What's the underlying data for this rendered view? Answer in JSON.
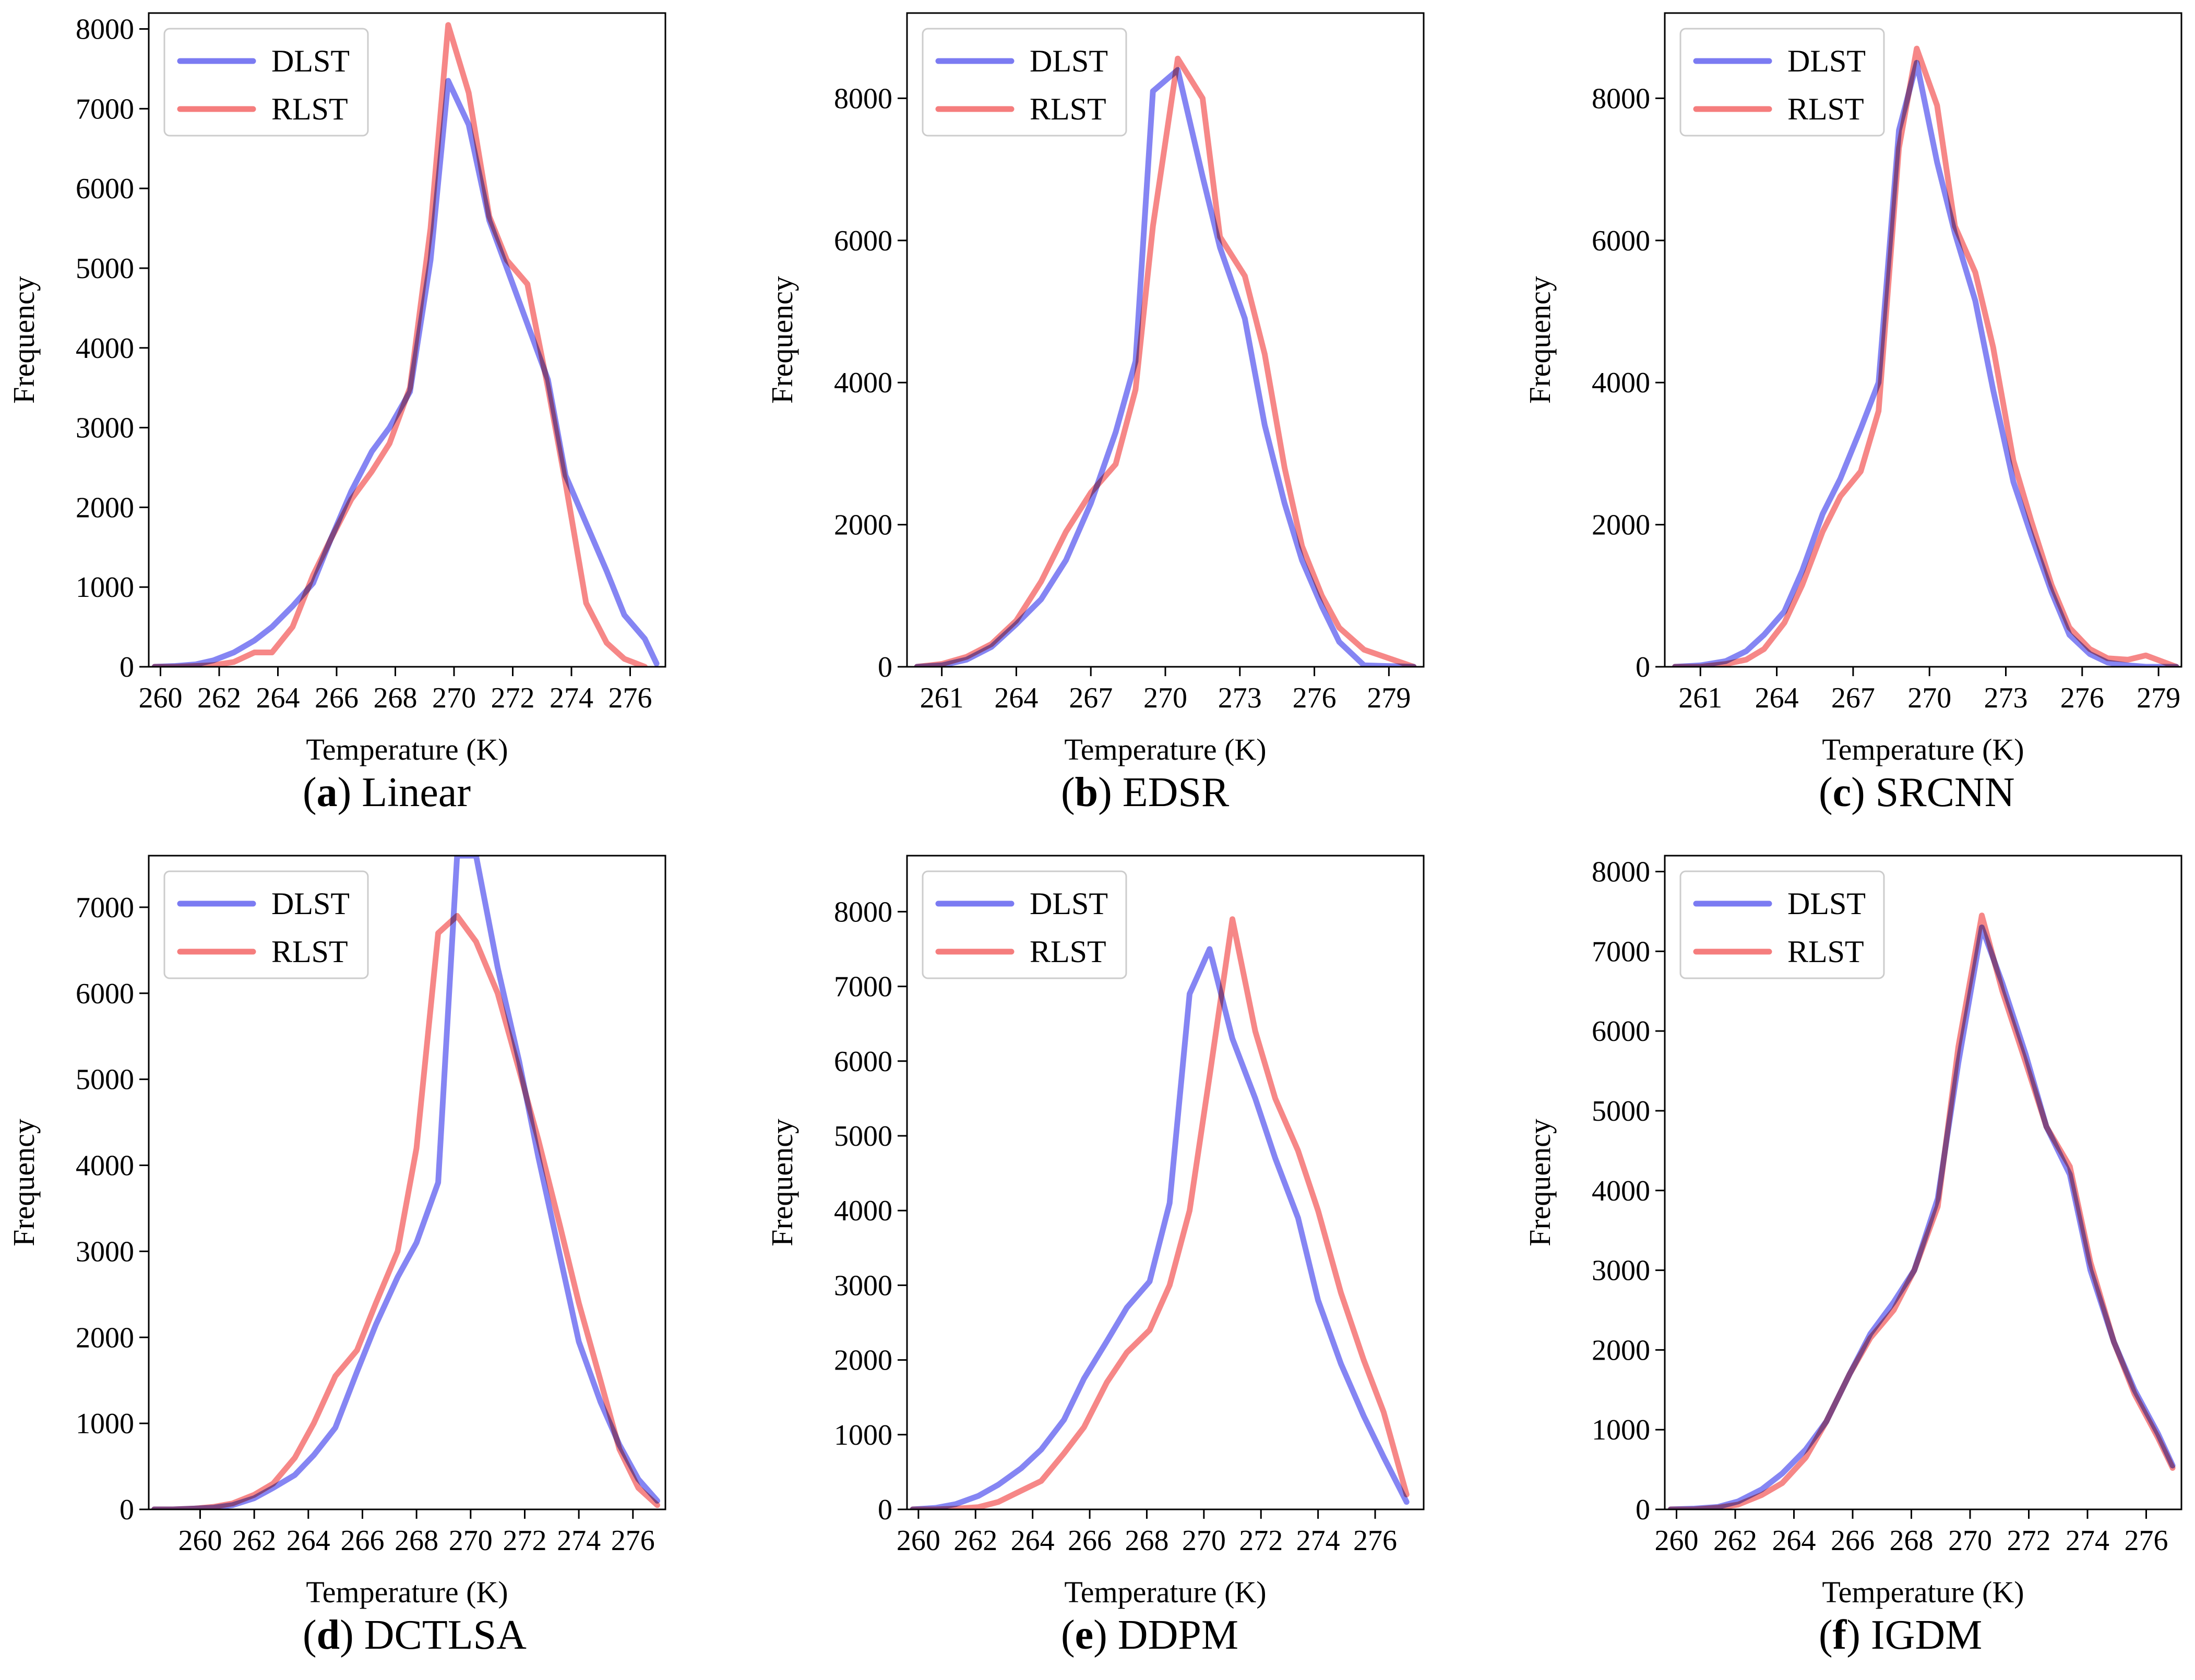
{
  "colors": {
    "dlst": "#7b7bf2",
    "rlst": "#f57d7d",
    "overlap": "#b54ab5"
  },
  "chart_data": [
    {
      "type": "line",
      "caption_letter": "a",
      "caption_text": " Linear",
      "xlabel": "Temperature (K)",
      "ylabel": "Frequency",
      "xlim": [
        259.6,
        277.2
      ],
      "ylim": [
        0,
        8200
      ],
      "xticks": [
        260,
        262,
        264,
        266,
        268,
        270,
        272,
        274,
        276
      ],
      "yticks": [
        0,
        1000,
        2000,
        3000,
        4000,
        5000,
        6000,
        7000,
        8000
      ],
      "legend": "top-left",
      "series": [
        {
          "name": "DLST",
          "x": [
            259.8,
            260.5,
            261.2,
            261.8,
            262.5,
            263.2,
            263.8,
            264.5,
            265.2,
            265.8,
            266.5,
            267.2,
            267.8,
            268.5,
            269.2,
            269.8,
            270.5,
            271.2,
            271.8,
            272.5,
            273.2,
            273.8,
            274.5,
            275.2,
            275.8,
            276.5,
            276.9
          ],
          "y": [
            0,
            10,
            30,
            80,
            180,
            330,
            500,
            760,
            1050,
            1600,
            2200,
            2700,
            3000,
            3450,
            5100,
            7350,
            6800,
            5600,
            5000,
            4300,
            3600,
            2400,
            1800,
            1200,
            650,
            350,
            40
          ]
        },
        {
          "name": "RLST",
          "x": [
            259.8,
            260.5,
            261.2,
            261.8,
            262.5,
            263.2,
            263.8,
            264.5,
            265.2,
            265.8,
            266.5,
            267.2,
            267.8,
            268.5,
            269.2,
            269.8,
            270.5,
            271.2,
            271.8,
            272.5,
            273.2,
            273.8,
            274.5,
            275.2,
            275.8,
            276.5
          ],
          "y": [
            0,
            0,
            10,
            20,
            60,
            180,
            180,
            500,
            1150,
            1600,
            2100,
            2450,
            2800,
            3500,
            5500,
            8050,
            7200,
            5650,
            5100,
            4800,
            3500,
            2300,
            800,
            300,
            100,
            0
          ]
        }
      ]
    },
    {
      "type": "line",
      "caption_letter": "b",
      "caption_text": " EDSR",
      "xlabel": "Temperature (K)",
      "ylabel": "Frequency",
      "xlim": [
        259.6,
        280.4
      ],
      "ylim": [
        0,
        9200
      ],
      "xticks": [
        261,
        264,
        267,
        270,
        273,
        276,
        279
      ],
      "yticks": [
        0,
        2000,
        4000,
        6000,
        8000
      ],
      "legend": "top-left",
      "series": [
        {
          "name": "DLST",
          "x": [
            260,
            261,
            262,
            263,
            264,
            265,
            266,
            267,
            268,
            268.8,
            269.5,
            270.5,
            271.5,
            272.2,
            273.2,
            274,
            274.8,
            275.5,
            276.3,
            277,
            278,
            280
          ],
          "y": [
            0,
            20,
            100,
            280,
            600,
            950,
            1500,
            2300,
            3300,
            4300,
            8100,
            8400,
            6900,
            5900,
            4900,
            3400,
            2300,
            1500,
            850,
            350,
            20,
            0
          ]
        },
        {
          "name": "RLST",
          "x": [
            260,
            261,
            262,
            263,
            264,
            265,
            266,
            267,
            268,
            268.8,
            269.5,
            270.5,
            271.5,
            272.2,
            273.2,
            274,
            274.8,
            275.5,
            276.3,
            277,
            278,
            280
          ],
          "y": [
            0,
            40,
            140,
            320,
            650,
            1200,
            1900,
            2450,
            2850,
            3900,
            6200,
            8560,
            8000,
            6050,
            5500,
            4400,
            2800,
            1700,
            1000,
            550,
            240,
            0
          ]
        }
      ]
    },
    {
      "type": "line",
      "caption_letter": "c",
      "caption_text": " SRCNN",
      "xlabel": "Temperature (K)",
      "ylabel": "Frequency",
      "xlim": [
        259.6,
        279.9
      ],
      "ylim": [
        0,
        9200
      ],
      "xticks": [
        261,
        264,
        267,
        270,
        273,
        276,
        279
      ],
      "yticks": [
        0,
        2000,
        4000,
        6000,
        8000
      ],
      "legend": "top-left",
      "series": [
        {
          "name": "DLST",
          "x": [
            260,
            261,
            262,
            262.8,
            263.5,
            264.3,
            265,
            265.8,
            266.5,
            267.3,
            268,
            268.8,
            269.5,
            270.3,
            271,
            271.8,
            272.5,
            273.3,
            274,
            274.8,
            275.5,
            276.3,
            277,
            277.8,
            278.5,
            279.7
          ],
          "y": [
            0,
            20,
            80,
            220,
            450,
            780,
            1350,
            2150,
            2650,
            3350,
            4000,
            7550,
            8500,
            7100,
            6100,
            5150,
            3900,
            2600,
            1850,
            1050,
            450,
            180,
            60,
            20,
            0,
            0
          ]
        },
        {
          "name": "RLST",
          "x": [
            260,
            261,
            262,
            262.8,
            263.5,
            264.3,
            265,
            265.8,
            266.5,
            267.3,
            268,
            268.8,
            269.5,
            270.3,
            271,
            271.8,
            272.5,
            273.3,
            274,
            274.8,
            275.5,
            276.3,
            277,
            277.8,
            278.5,
            279.7
          ],
          "y": [
            0,
            0,
            40,
            100,
            250,
            620,
            1150,
            1900,
            2400,
            2750,
            3600,
            7300,
            8700,
            7900,
            6200,
            5550,
            4500,
            2900,
            2050,
            1150,
            550,
            250,
            120,
            100,
            160,
            0
          ]
        }
      ]
    },
    {
      "type": "line",
      "caption_letter": "d",
      "caption_text": " DCTLSA",
      "xlabel": "Temperature (K)",
      "ylabel": "Frequency",
      "xlim": [
        258.1,
        277.2
      ],
      "ylim": [
        0,
        7600
      ],
      "xticks": [
        260,
        262,
        264,
        266,
        268,
        270,
        272,
        274,
        276
      ],
      "yticks": [
        0,
        1000,
        2000,
        3000,
        4000,
        5000,
        6000,
        7000
      ],
      "legend": "top-left",
      "series": [
        {
          "name": "DLST",
          "x": [
            258.3,
            259,
            259.8,
            260.5,
            261.2,
            262,
            262.7,
            263.5,
            264.2,
            265,
            265.8,
            266.5,
            267.3,
            268,
            268.8,
            269.5,
            270.2,
            271,
            271.8,
            272.5,
            273.3,
            274,
            274.8,
            275.5,
            276.2,
            276.9
          ],
          "y": [
            0,
            0,
            10,
            20,
            50,
            130,
            250,
            400,
            630,
            950,
            1600,
            2150,
            2700,
            3100,
            3800,
            7600,
            7600,
            6300,
            5200,
            4100,
            2950,
            1950,
            1250,
            750,
            350,
            100
          ]
        },
        {
          "name": "RLST",
          "x": [
            258.3,
            259,
            259.8,
            260.5,
            261.2,
            262,
            262.7,
            263.5,
            264.2,
            265,
            265.8,
            266.5,
            267.3,
            268,
            268.8,
            269.5,
            270.2,
            271,
            271.8,
            272.5,
            273.3,
            274,
            274.8,
            275.5,
            276.2,
            276.9
          ],
          "y": [
            0,
            0,
            10,
            30,
            70,
            170,
            300,
            600,
            1000,
            1550,
            1850,
            2400,
            3000,
            4200,
            6700,
            6900,
            6600,
            6000,
            5100,
            4300,
            3300,
            2400,
            1500,
            700,
            250,
            50
          ]
        }
      ]
    },
    {
      "type": "line",
      "caption_letter": "e",
      "caption_text": " DDPM",
      "xlabel": "Temperature (K)",
      "ylabel": "Frequency",
      "xlim": [
        259.6,
        277.7
      ],
      "ylim": [
        0,
        8750
      ],
      "xticks": [
        260,
        262,
        264,
        266,
        268,
        270,
        272,
        274,
        276
      ],
      "yticks": [
        0,
        1000,
        2000,
        3000,
        4000,
        5000,
        6000,
        7000,
        8000
      ],
      "legend": "top-left",
      "series": [
        {
          "name": "DLST",
          "x": [
            259.8,
            260.6,
            261.3,
            262.1,
            262.8,
            263.6,
            264.3,
            265.1,
            265.8,
            266.6,
            267.3,
            268.1,
            268.8,
            269.5,
            270.2,
            271,
            271.8,
            272.5,
            273.3,
            274,
            274.8,
            275.6,
            276.3,
            277.1
          ],
          "y": [
            0,
            20,
            70,
            180,
            330,
            550,
            800,
            1200,
            1750,
            2250,
            2700,
            3050,
            4100,
            6900,
            7500,
            6300,
            5500,
            4700,
            3900,
            2800,
            1950,
            1250,
            700,
            100
          ]
        },
        {
          "name": "RLST",
          "x": [
            259.8,
            260.6,
            261.3,
            262.1,
            262.8,
            263.6,
            264.3,
            265.1,
            265.8,
            266.6,
            267.3,
            268.1,
            268.8,
            269.5,
            270.2,
            271,
            271.8,
            272.5,
            273.3,
            274,
            274.8,
            275.6,
            276.3,
            277.1
          ],
          "y": [
            0,
            0,
            10,
            30,
            100,
            250,
            380,
            750,
            1100,
            1700,
            2100,
            2400,
            3000,
            4000,
            5800,
            7900,
            6400,
            5500,
            4800,
            4000,
            2900,
            2000,
            1300,
            200
          ]
        }
      ]
    },
    {
      "type": "line",
      "caption_letter": "f",
      "caption_text": " IGDM",
      "xlabel": "Temperature (K)",
      "ylabel": "Frequency",
      "xlim": [
        259.6,
        277.2
      ],
      "ylim": [
        0,
        8200
      ],
      "xticks": [
        260,
        262,
        264,
        266,
        268,
        270,
        272,
        274,
        276
      ],
      "yticks": [
        0,
        1000,
        2000,
        3000,
        4000,
        5000,
        6000,
        7000,
        8000
      ],
      "legend": "top-left",
      "series": [
        {
          "name": "DLST",
          "x": [
            259.8,
            260.6,
            261.4,
            262.1,
            262.9,
            263.6,
            264.4,
            265.1,
            265.9,
            266.6,
            267.4,
            268.1,
            268.9,
            269.6,
            270.4,
            271.1,
            271.9,
            272.6,
            273.4,
            274.1,
            274.9,
            275.6,
            276.4,
            276.9
          ],
          "y": [
            0,
            10,
            30,
            100,
            250,
            450,
            750,
            1100,
            1700,
            2200,
            2600,
            3000,
            3900,
            5600,
            7300,
            6600,
            5700,
            4800,
            4200,
            3000,
            2100,
            1500,
            950,
            550
          ]
        },
        {
          "name": "RLST",
          "x": [
            259.8,
            260.6,
            261.4,
            262.1,
            262.9,
            263.6,
            264.4,
            265.1,
            265.9,
            266.6,
            267.4,
            268.1,
            268.9,
            269.6,
            270.4,
            271.1,
            271.9,
            272.6,
            273.4,
            274.1,
            274.9,
            275.6,
            276.4,
            276.9
          ],
          "y": [
            0,
            0,
            20,
            60,
            180,
            330,
            650,
            1100,
            1700,
            2150,
            2500,
            3000,
            3800,
            5800,
            7450,
            6500,
            5600,
            4800,
            4300,
            3100,
            2100,
            1450,
            900,
            520
          ]
        }
      ]
    }
  ]
}
